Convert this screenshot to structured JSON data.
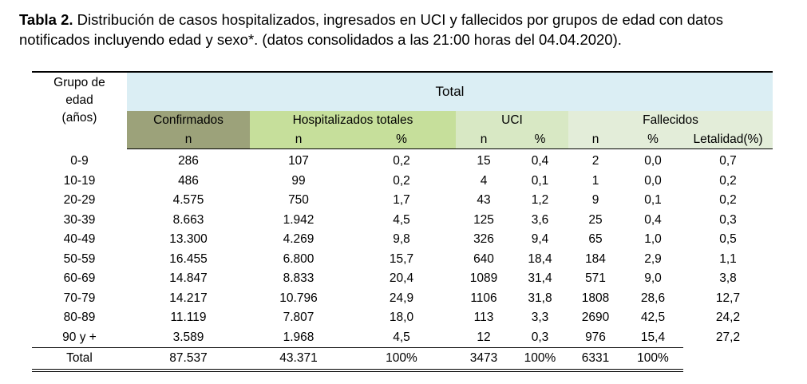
{
  "caption": {
    "bold": "Tabla 2.",
    "text": " Distribución de casos hospitalizados, ingresados en UCI y fallecidos por grupos de edad con datos notificados incluyendo edad y sexo*. (datos consolidados a las 21:00 horas del 04.04.2020)."
  },
  "header": {
    "grupo_line1": "Grupo de",
    "grupo_line2": "edad",
    "grupo_line3": "(años)",
    "total": "Total",
    "confirmados": "Confirmados",
    "hospitalizados": "Hospitalizados totales",
    "uci": "UCI",
    "fallecidos": "Fallecidos",
    "n": "n",
    "pct": "%",
    "letalidad": "Letalidad(%)"
  },
  "rows": [
    [
      "0-9",
      "286",
      "107",
      "0,2",
      "15",
      "0,4",
      "2",
      "0,0",
      "0,7"
    ],
    [
      "10-19",
      "486",
      "99",
      "0,2",
      "4",
      "0,1",
      "1",
      "0,0",
      "0,2"
    ],
    [
      "20-29",
      "4.575",
      "750",
      "1,7",
      "43",
      "1,2",
      "9",
      "0,1",
      "0,2"
    ],
    [
      "30-39",
      "8.663",
      "1.942",
      "4,5",
      "125",
      "3,6",
      "25",
      "0,4",
      "0,3"
    ],
    [
      "40-49",
      "13.300",
      "4.269",
      "9,8",
      "326",
      "9,4",
      "65",
      "1,0",
      "0,5"
    ],
    [
      "50-59",
      "16.455",
      "6.800",
      "15,7",
      "640",
      "18,4",
      "184",
      "2,9",
      "1,1"
    ],
    [
      "60-69",
      "14.847",
      "8.833",
      "20,4",
      "1089",
      "31,4",
      "571",
      "9,0",
      "3,8"
    ],
    [
      "70-79",
      "14.217",
      "10.796",
      "24,9",
      "1106",
      "31,8",
      "1808",
      "28,6",
      "12,7"
    ],
    [
      "80-89",
      "11.119",
      "7.807",
      "18,0",
      "113",
      "3,3",
      "2690",
      "42,5",
      "24,2"
    ],
    [
      "90 y +",
      "3.589",
      "1.968",
      "4,5",
      "12",
      "0,3",
      "976",
      "15,4",
      "27,2"
    ]
  ],
  "total_row": [
    "Total",
    "87.537",
    "43.371",
    "100%",
    "3473",
    "100%",
    "6331",
    "100%"
  ]
}
